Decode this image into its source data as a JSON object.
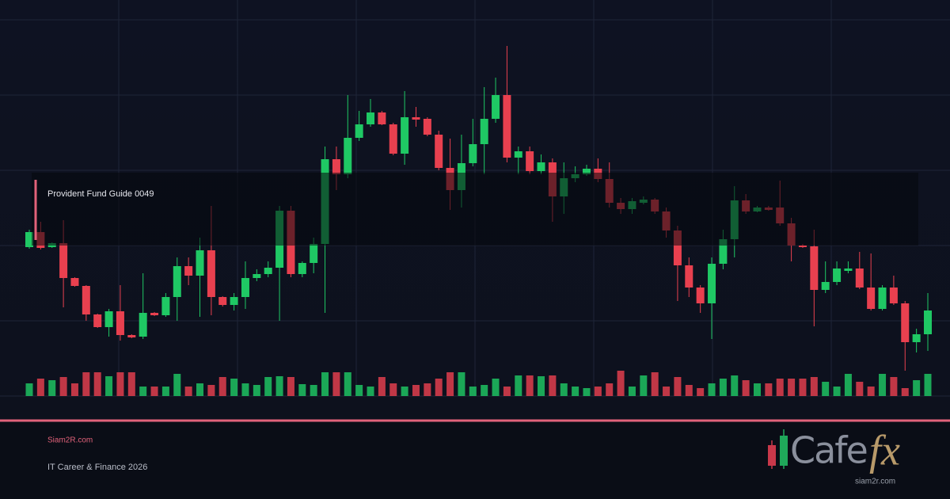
{
  "chart_data": {
    "type": "candlestick",
    "label": "Provident Fund Guide 0049",
    "ylim": [
      0,
      500
    ],
    "up_color": "#1fc864",
    "down_color": "#e8404f",
    "open": [
      188,
      207,
      188,
      193,
      149,
      139,
      103,
      87,
      107,
      77,
      75,
      105,
      102,
      125,
      164,
      152,
      184,
      125,
      115,
      125,
      149,
      154,
      162,
      234,
      154,
      168,
      192,
      299,
      280,
      326,
      343,
      358,
      343,
      306,
      352,
      350,
      330,
      288,
      260,
      294,
      318,
      350,
      380,
      301,
      309,
      284,
      295,
      252,
      275,
      280,
      287,
      274,
      244,
      236,
      244,
      248,
      233,
      209,
      165,
      137,
      117,
      167,
      198,
      247,
      233,
      238,
      238,
      218,
      190,
      189,
      134,
      144,
      158,
      161,
      137,
      110,
      137,
      117,
      68,
      78
    ],
    "high": [
      210,
      220,
      194,
      222,
      150,
      140,
      104,
      110,
      140,
      78,
      155,
      106,
      130,
      175,
      175,
      200,
      240,
      126,
      130,
      170,
      160,
      170,
      240,
      240,
      170,
      200,
      315,
      315,
      380,
      360,
      375,
      360,
      345,
      385,
      365,
      352,
      335,
      325,
      330,
      350,
      390,
      402,
      442,
      315,
      315,
      305,
      300,
      295,
      290,
      292,
      300,
      295,
      250,
      250,
      252,
      250,
      238,
      215,
      175,
      140,
      175,
      210,
      265,
      255,
      240,
      240,
      272,
      225,
      192,
      210,
      170,
      170,
      170,
      182,
      180,
      140,
      152,
      120,
      85,
      130
    ],
    "low": [
      186,
      185,
      187,
      112,
      138,
      95,
      86,
      75,
      70,
      73,
      72,
      101,
      100,
      95,
      140,
      100,
      102,
      113,
      108,
      110,
      145,
      150,
      95,
      150,
      150,
      155,
      105,
      260,
      275,
      322,
      340,
      342,
      304,
      292,
      340,
      328,
      285,
      235,
      238,
      290,
      280,
      345,
      295,
      280,
      280,
      280,
      220,
      230,
      270,
      278,
      270,
      238,
      230,
      230,
      242,
      230,
      200,
      120,
      125,
      105,
      72,
      160,
      175,
      230,
      232,
      234,
      215,
      170,
      187,
      88,
      130,
      140,
      155,
      135,
      108,
      108,
      115,
      32,
      55,
      57
    ],
    "close": [
      207,
      187,
      193,
      149,
      139,
      103,
      87,
      107,
      77,
      74,
      105,
      102,
      125,
      164,
      152,
      184,
      125,
      115,
      125,
      149,
      154,
      162,
      234,
      154,
      168,
      192,
      299,
      280,
      326,
      343,
      358,
      343,
      306,
      352,
      349,
      330,
      288,
      260,
      294,
      318,
      350,
      380,
      301,
      309,
      284,
      295,
      252,
      275,
      280,
      287,
      274,
      244,
      236,
      246,
      248,
      233,
      209,
      165,
      137,
      117,
      167,
      198,
      247,
      233,
      238,
      235,
      218,
      190,
      188,
      134,
      144,
      161,
      161,
      137,
      110,
      137,
      117,
      68,
      78,
      108
    ],
    "volume": [
      16,
      22,
      20,
      24,
      16,
      30,
      30,
      25,
      30,
      30,
      12,
      12,
      12,
      28,
      12,
      16,
      14,
      24,
      22,
      16,
      14,
      24,
      25,
      24,
      15,
      14,
      30,
      30,
      30,
      14,
      12,
      24,
      16,
      12,
      14,
      16,
      22,
      30,
      30,
      12,
      14,
      22,
      12,
      26,
      26,
      25,
      26,
      16,
      12,
      10,
      12,
      16,
      32,
      12,
      26,
      30,
      12,
      24,
      14,
      10,
      16,
      22,
      26,
      20,
      16,
      16,
      22,
      22,
      22,
      24,
      18,
      12,
      28,
      18,
      12,
      28,
      24,
      10,
      20,
      28
    ]
  },
  "footer": {
    "site": "Siam2R.com",
    "tagline": "IT Career & Finance 2026"
  },
  "logo": {
    "word": "Cafe",
    "accent": "fx",
    "url": "siam2r.com"
  }
}
